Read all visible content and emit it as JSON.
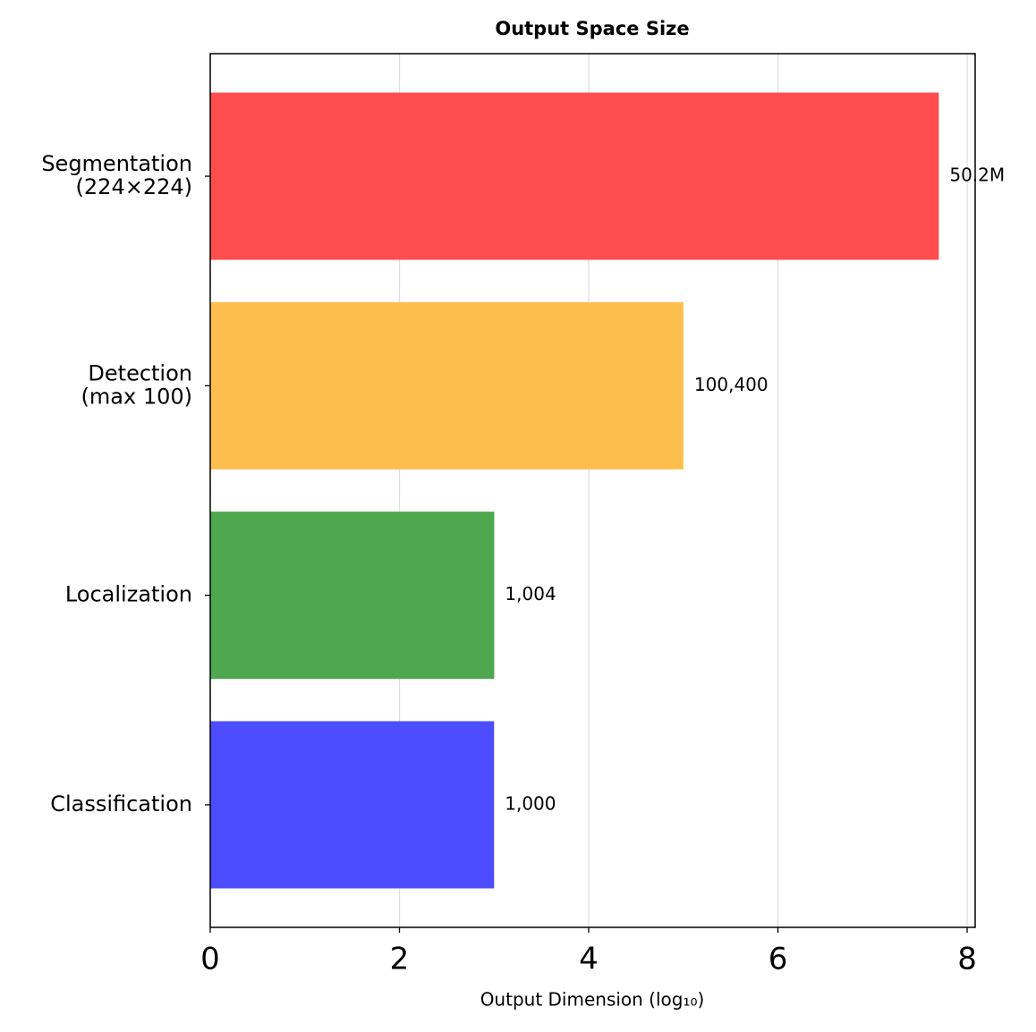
{
  "chart_data": {
    "type": "barh",
    "title": "Output Space Size",
    "xlabel": "Output Dimension (log₁₀)",
    "categories": [
      "Classification",
      "Localization",
      "Detection\n(max 100)",
      "Segmentation\n(224×224)"
    ],
    "values": [
      3.0,
      3.0017,
      5.0017,
      7.7007
    ],
    "value_labels": [
      "1,000",
      "1,004",
      "100,400",
      "50.2M"
    ],
    "colors": [
      "#4d4dff",
      "#4ea64e",
      "#fdbe4e",
      "#ff4d4d"
    ],
    "xlim": [
      0,
      8.085
    ],
    "xticks": [
      0,
      2,
      4,
      6,
      8
    ],
    "grid": true
  }
}
